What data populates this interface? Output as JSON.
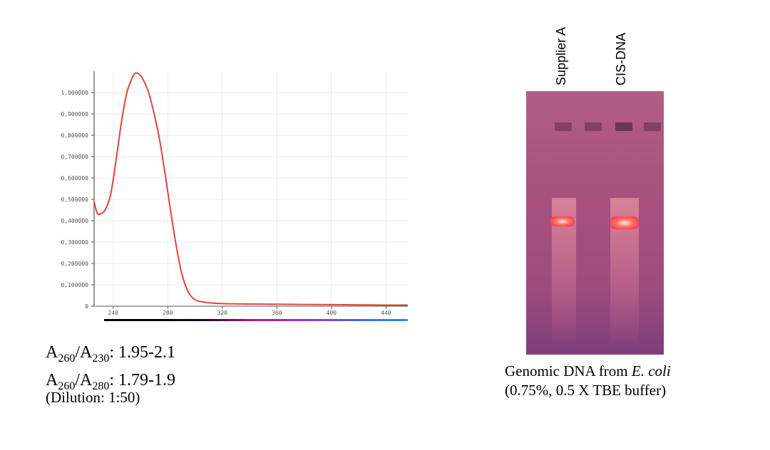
{
  "chart_data": {
    "type": "line",
    "title": "",
    "xlabel": "",
    "ylabel": "",
    "xlim": [
      226,
      456
    ],
    "ylim": [
      0,
      1.1
    ],
    "x_ticks": [
      240,
      280,
      320,
      360,
      400,
      440
    ],
    "x_tick_labels": [
      "240",
      "280",
      "320",
      "360",
      "400",
      "440"
    ],
    "y_ticks": [
      0,
      0.1,
      0.2,
      0.3,
      0.4,
      0.5,
      0.6,
      0.7,
      0.8,
      0.9,
      1.0
    ],
    "y_tick_labels": [
      "0",
      "0,100000",
      "0,200000",
      "0,300000",
      "0,400000",
      "0,500000",
      "0,600000",
      "0,700000",
      "0,800000",
      "0,900000",
      "1,000000"
    ],
    "grid": true,
    "series": [
      {
        "color": "#e0453c",
        "x": [
          226,
          228,
          230,
          234,
          238,
          242,
          246,
          250,
          254,
          256,
          258,
          260,
          262,
          266,
          270,
          274,
          278,
          282,
          286,
          290,
          294,
          298,
          302,
          306,
          310,
          320,
          340,
          360,
          380,
          400,
          420,
          440,
          456
        ],
        "y": [
          0.49,
          0.44,
          0.43,
          0.45,
          0.52,
          0.68,
          0.86,
          1.0,
          1.07,
          1.09,
          1.09,
          1.08,
          1.06,
          1.0,
          0.9,
          0.78,
          0.62,
          0.45,
          0.29,
          0.16,
          0.08,
          0.04,
          0.025,
          0.02,
          0.016,
          0.012,
          0.01,
          0.009,
          0.008,
          0.007,
          0.006,
          0.005,
          0.005
        ]
      }
    ],
    "spectrum_bar_colors": [
      "#000000",
      "#000000",
      "#1a0a2a",
      "#c71585",
      "#9932cc",
      "#4169e1",
      "#1e90ff"
    ]
  },
  "ratios": {
    "line1": {
      "a": "A",
      "sub1": "260",
      "slash": "/A",
      "sub2": "230",
      "value": ": 1.95-2.1"
    },
    "line2": {
      "a": "A",
      "sub1": "260",
      "slash": "/A",
      "sub2": "280",
      "value": ": 1.79-1.9"
    },
    "dilution": "(Dilution: 1:50)"
  },
  "gel": {
    "lane1_label": "Supplier A",
    "lane2_label": "CIS-DNA",
    "background_color": "#a8517f"
  },
  "caption": {
    "line1_prefix": "Genomic DNA from ",
    "line1_italic": "E. coli",
    "line2": "(0.75%, 0.5 X TBE buffer)"
  }
}
